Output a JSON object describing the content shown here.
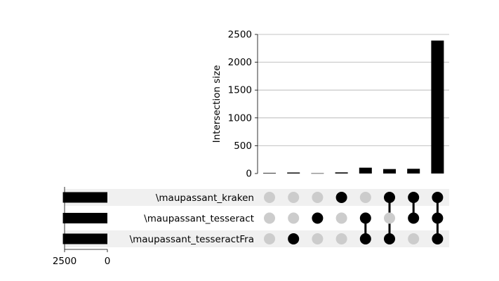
{
  "chart_data": {
    "type": "upset",
    "intersection_axis": {
      "ylabel": "Intersection size",
      "ylim": [
        0,
        2500
      ],
      "ticks": [
        0,
        500,
        1000,
        1500,
        2000,
        2500
      ],
      "tick_labels": [
        "0",
        "500",
        "1000",
        "1500",
        "2000",
        "2500"
      ],
      "grid": true
    },
    "sets": [
      {
        "name": "\\maupassant_kraken",
        "size": 2600
      },
      {
        "name": "\\maupassant_tesseract",
        "size": 2600
      },
      {
        "name": "\\maupassant_tesseractFra",
        "size": 2600
      }
    ],
    "set_size_axis": {
      "ticks": [
        2500,
        0
      ],
      "tick_labels": [
        "2500",
        "0"
      ],
      "direction": "reversed"
    },
    "intersections": [
      {
        "members": [
          false,
          false,
          false
        ],
        "value": 10
      },
      {
        "members": [
          false,
          false,
          true
        ],
        "value": 18
      },
      {
        "members": [
          false,
          true,
          false
        ],
        "value": 5
      },
      {
        "members": [
          true,
          false,
          false
        ],
        "value": 20
      },
      {
        "members": [
          false,
          true,
          true
        ],
        "value": 105
      },
      {
        "members": [
          true,
          false,
          true
        ],
        "value": 80
      },
      {
        "members": [
          true,
          true,
          false
        ],
        "value": 85
      },
      {
        "members": [
          true,
          true,
          true
        ],
        "value": 2390
      }
    ],
    "colors": {
      "active": "#000000",
      "inactive": "#cccccc",
      "stripe": "#f0f0f0",
      "grid": "#b0b0b0"
    }
  }
}
